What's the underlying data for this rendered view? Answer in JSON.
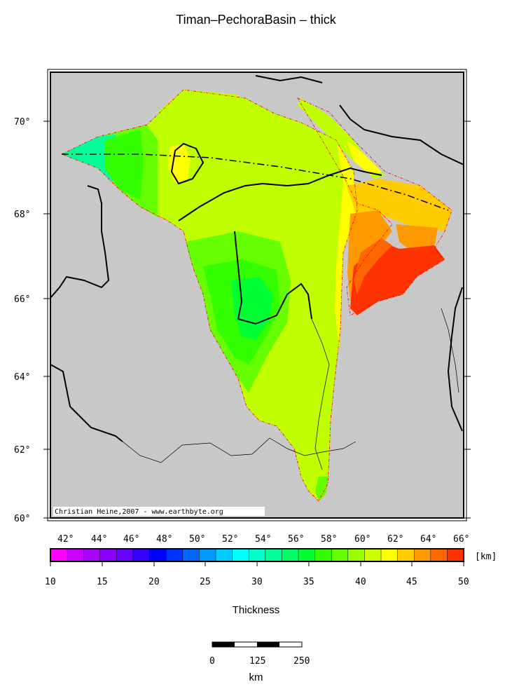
{
  "title": "Timan–PechoraBasin – thick",
  "credit": "Christian Heine,2007 - www.earthbyte.org",
  "latitude_labels": [
    "70°",
    "68°",
    "66°",
    "64°",
    "62°",
    "60°"
  ],
  "longitude_labels": [
    "42°",
    "44°",
    "46°",
    "48°",
    "50°",
    "52°",
    "54°",
    "56°",
    "58°",
    "60°",
    "62°",
    "64°",
    "66°"
  ],
  "colorbar": {
    "unit": "[km]",
    "tick_labels": [
      "10",
      "15",
      "20",
      "25",
      "30",
      "35",
      "40",
      "45",
      "50"
    ],
    "colors": [
      "#ff00ff",
      "#cc00ff",
      "#aa00ff",
      "#8800ff",
      "#6600ff",
      "#3300ff",
      "#0000ff",
      "#0033ff",
      "#0066ff",
      "#0099ff",
      "#00ccff",
      "#00ffff",
      "#00ffcc",
      "#00ff99",
      "#00ff66",
      "#00ff33",
      "#33ff00",
      "#66ff00",
      "#99ff00",
      "#ccff00",
      "#ffff00",
      "#ffcc00",
      "#ff9900",
      "#ff6600",
      "#ff3300"
    ],
    "title": "Thickness"
  },
  "scale_bar": {
    "ticks": [
      "0",
      "125",
      "250"
    ],
    "unit": "km"
  },
  "colors": {
    "land_background": "#c8c8c8",
    "basin_boundary": "#ff0000",
    "coastline": "#000000"
  }
}
